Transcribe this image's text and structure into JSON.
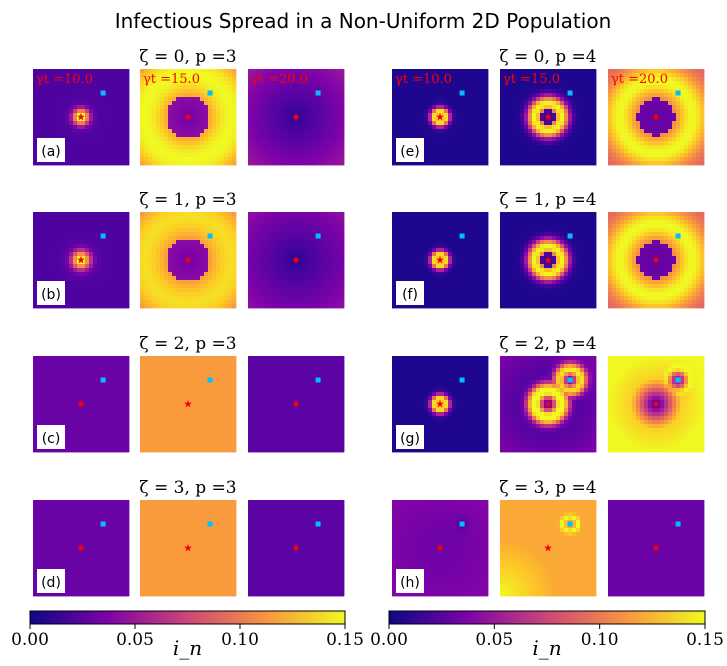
{
  "title": "Infectious Spread in a Non-Uniform 2D Population",
  "colors": {
    "colormap": "plasma",
    "time_label": "#ff0000",
    "seed_marker": "#ff0000",
    "target_marker": "#00bfff",
    "panel_label_bg": "#ffffff"
  },
  "chart_data": {
    "type": "heatmap",
    "time_labels": [
      "γt =10.0",
      "γt =15.0",
      "γt =20.0"
    ],
    "times": [
      10.0,
      15.0,
      20.0
    ],
    "colorbar": {
      "label": "i_n",
      "range": [
        0,
        0.15
      ],
      "ticks": [
        "0.00",
        "0.05",
        "0.10",
        "0.15"
      ]
    },
    "markers": {
      "seed": {
        "shape": "star",
        "color": "red"
      },
      "target": {
        "shape": "square",
        "color": "deepskyblue"
      }
    },
    "panels": [
      {
        "id": "a",
        "label": "(a)",
        "zeta": 0,
        "p": 3,
        "title": "ζ = 0, p =3",
        "states": [
          {
            "type": "blob",
            "amp": 0.15,
            "width": 0.06
          },
          {
            "type": "ring",
            "radius": 0.45,
            "width": 0.28,
            "amp": 0.15,
            "floor": 0.04,
            "inner": 0.02
          },
          {
            "type": "bowl",
            "low": 0.01,
            "high": 0.05
          }
        ]
      },
      {
        "id": "b",
        "label": "(b)",
        "zeta": 1,
        "p": 3,
        "title": "ζ = 1, p =3",
        "states": [
          {
            "type": "blob",
            "amp": 0.14,
            "width": 0.07
          },
          {
            "type": "ring",
            "radius": 0.45,
            "width": 0.28,
            "amp": 0.14,
            "floor": 0.05,
            "inner": 0.02
          },
          {
            "type": "bowl",
            "low": 0.01,
            "high": 0.045
          }
        ]
      },
      {
        "id": "c",
        "label": "(c)",
        "zeta": 2,
        "p": 3,
        "title": "ζ = 2, p =3",
        "states": [
          {
            "type": "flat",
            "level": 0.03
          },
          {
            "type": "flat",
            "level": 0.115
          },
          {
            "type": "flat",
            "level": 0.025
          }
        ]
      },
      {
        "id": "d",
        "label": "(d)",
        "zeta": 3,
        "p": 3,
        "title": "ζ = 3, p =3",
        "states": [
          {
            "type": "flat",
            "level": 0.03
          },
          {
            "type": "flat",
            "level": 0.115
          },
          {
            "type": "flat",
            "level": 0.025
          }
        ]
      },
      {
        "id": "e",
        "label": "(e)",
        "zeta": 0,
        "p": 4,
        "title": "ζ = 0, p =4",
        "states": [
          {
            "type": "ring",
            "radius": 0.05,
            "width": 0.04,
            "amp": 0.15,
            "floor": 0.005,
            "inner": 0.005
          },
          {
            "type": "ring",
            "radius": 0.14,
            "width": 0.06,
            "amp": 0.15,
            "floor": 0.005,
            "inner": 0.005
          },
          {
            "type": "ring",
            "radius": 0.38,
            "width": 0.12,
            "amp": 0.15,
            "floor": 0.09,
            "inner": 0.01
          }
        ]
      },
      {
        "id": "f",
        "label": "(f)",
        "zeta": 1,
        "p": 4,
        "title": "ζ = 1, p =4",
        "states": [
          {
            "type": "ring",
            "radius": 0.05,
            "width": 0.04,
            "amp": 0.15,
            "floor": 0.005,
            "inner": 0.005
          },
          {
            "type": "ring",
            "radius": 0.14,
            "width": 0.06,
            "amp": 0.15,
            "floor": 0.005,
            "inner": 0.005
          },
          {
            "type": "ring",
            "radius": 0.38,
            "width": 0.12,
            "amp": 0.15,
            "floor": 0.09,
            "inner": 0.01
          }
        ]
      },
      {
        "id": "g",
        "label": "(g)",
        "zeta": 2,
        "p": 4,
        "title": "ζ = 2, p =4",
        "states": [
          {
            "type": "ring",
            "radius": 0.05,
            "width": 0.04,
            "amp": 0.15,
            "floor": 0.005,
            "inner": 0.005
          },
          {
            "type": "double",
            "radius": 0.14,
            "width": 0.06,
            "amp": 0.15,
            "floor": 0.04
          },
          {
            "type": "late",
            "floor": 0.12
          }
        ]
      },
      {
        "id": "h",
        "label": "(h)",
        "zeta": 3,
        "p": 4,
        "title": "ζ = 3, p =4",
        "states": [
          {
            "type": "faint",
            "level": 0.03
          },
          {
            "type": "corner",
            "level": 0.12,
            "high": 0.15
          },
          {
            "type": "flat",
            "level": 0.03
          }
        ]
      }
    ]
  }
}
